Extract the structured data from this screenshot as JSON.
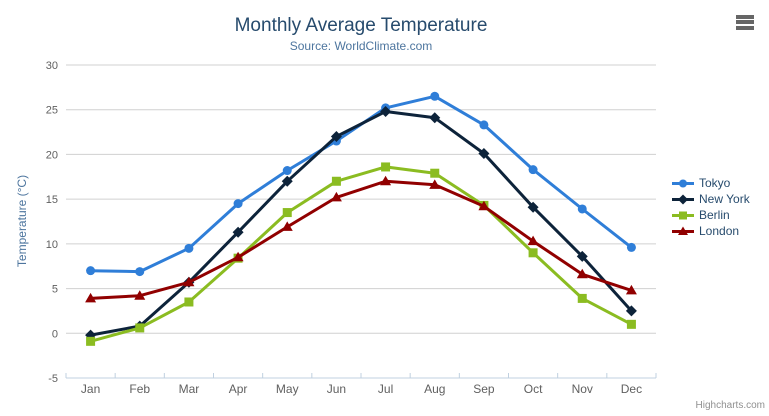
{
  "chart": {
    "title": "Monthly Average Temperature",
    "subtitle": "Source: WorldClimate.com",
    "credits": "Highcharts.com"
  },
  "icons": {
    "export_menu": "hamburger-menu-icon"
  },
  "chart_data": {
    "type": "line",
    "title": "Monthly Average Temperature",
    "subtitle": "Source: WorldClimate.com",
    "categories": [
      "Jan",
      "Feb",
      "Mar",
      "Apr",
      "May",
      "Jun",
      "Jul",
      "Aug",
      "Sep",
      "Oct",
      "Nov",
      "Dec"
    ],
    "series": [
      {
        "name": "Tokyo",
        "color": "#2f7ed8",
        "marker": "circle",
        "values": [
          7.0,
          6.9,
          9.5,
          14.5,
          18.2,
          21.5,
          25.2,
          26.5,
          23.3,
          18.3,
          13.9,
          9.6
        ]
      },
      {
        "name": "New York",
        "color": "#0d233a",
        "marker": "diamond",
        "values": [
          -0.2,
          0.8,
          5.7,
          11.3,
          17.0,
          22.0,
          24.8,
          24.1,
          20.1,
          14.1,
          8.6,
          2.5
        ]
      },
      {
        "name": "Berlin",
        "color": "#8bbc21",
        "marker": "square",
        "values": [
          -0.9,
          0.6,
          3.5,
          8.4,
          13.5,
          17.0,
          18.6,
          17.9,
          14.3,
          9.0,
          3.9,
          1.0
        ]
      },
      {
        "name": "London",
        "color": "#910000",
        "marker": "triangle",
        "values": [
          3.9,
          4.2,
          5.7,
          8.5,
          11.9,
          15.2,
          17.0,
          16.6,
          14.2,
          10.3,
          6.6,
          4.8
        ]
      }
    ],
    "xlabel": "",
    "ylabel": "Temperature (°C)",
    "ylim": [
      -5,
      30
    ],
    "yticks": [
      -5,
      0,
      5,
      10,
      15,
      20,
      25,
      30
    ],
    "grid": true,
    "legend_position": "right"
  }
}
